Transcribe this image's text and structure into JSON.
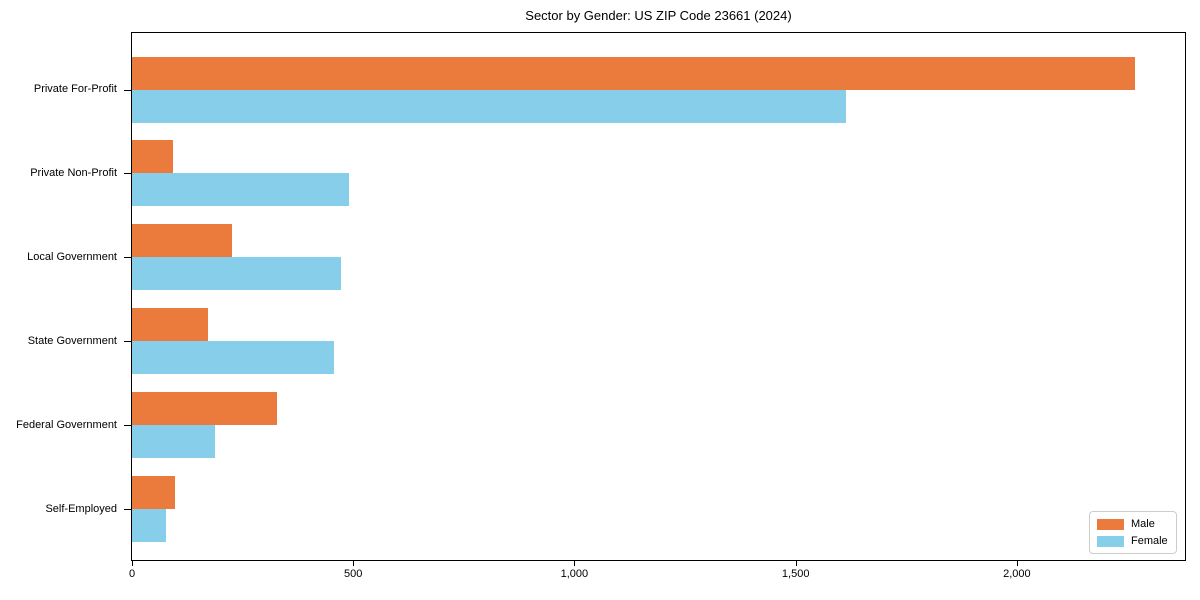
{
  "chart_data": {
    "type": "bar",
    "orientation": "horizontal",
    "title": "Sector by Gender: US ZIP Code 23661 (2024)",
    "categories": [
      "Private For-Profit",
      "Private Non-Profit",
      "Local Government",
      "State Government",
      "Federal Government",
      "Self-Employed"
    ],
    "series": [
      {
        "name": "Male",
        "color": "#EB7B3C",
        "values": [
          2267,
          93,
          225,
          172,
          327,
          98
        ]
      },
      {
        "name": "Female",
        "color": "#87CEEB",
        "values": [
          1614,
          491,
          472,
          457,
          188,
          77
        ]
      }
    ],
    "xlabel": "",
    "ylabel": "",
    "xlim": [
      0,
      2380
    ],
    "x_ticks": [
      0,
      500,
      1000,
      1500,
      2000
    ],
    "x_tick_labels": [
      "0",
      "500",
      "1,000",
      "1,500",
      "2,000"
    ],
    "grid": false,
    "legend_position": "lower right"
  }
}
